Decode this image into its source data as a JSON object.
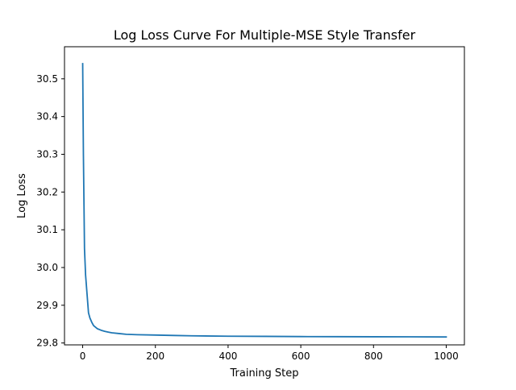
{
  "chart_data": {
    "type": "line",
    "title": "Log Loss Curve For Multiple-MSE Style Transfer",
    "xlabel": "Training Step",
    "ylabel": "Log Loss",
    "xlim": [
      -50,
      1050
    ],
    "ylim": [
      29.795,
      30.585
    ],
    "xticks": [
      0,
      200,
      400,
      600,
      800,
      1000
    ],
    "xtick_labels": [
      "0",
      "200",
      "400",
      "600",
      "800",
      "1000"
    ],
    "yticks": [
      29.8,
      29.9,
      30.0,
      30.1,
      30.2,
      30.3,
      30.4,
      30.5
    ],
    "ytick_labels": [
      "29.8",
      "29.9",
      "30.0",
      "30.1",
      "30.2",
      "30.3",
      "30.4",
      "30.5"
    ],
    "grid": false,
    "legend": "none",
    "series": [
      {
        "color": "#1f77b4",
        "x": [
          0,
          2,
          5,
          8,
          12,
          16,
          20,
          25,
          30,
          40,
          50,
          60,
          70,
          80,
          100,
          120,
          150,
          200,
          250,
          300,
          400,
          500,
          600,
          700,
          800,
          900,
          1000
        ],
        "y": [
          30.54,
          30.3,
          30.05,
          29.98,
          29.93,
          29.88,
          29.866,
          29.855,
          29.846,
          29.838,
          29.834,
          29.831,
          29.829,
          29.827,
          29.825,
          29.823,
          29.822,
          29.821,
          29.82,
          29.819,
          29.818,
          29.8175,
          29.817,
          29.8168,
          29.8165,
          29.8163,
          29.816
        ]
      }
    ]
  }
}
